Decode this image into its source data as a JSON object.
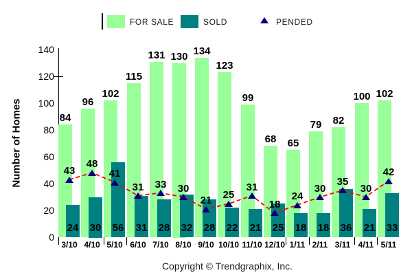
{
  "legend": {
    "items": [
      {
        "label": "FOR SALE",
        "swatch": "square",
        "color": "#99ff99"
      },
      {
        "label": "SOLD",
        "swatch": "square",
        "color": "#008080"
      },
      {
        "label": "PENDED",
        "swatch": "triangle",
        "color": "#000080"
      }
    ]
  },
  "footer": {
    "copyright": "Copyright © Trendgraphix, Inc."
  },
  "chart_data": {
    "type": "bar",
    "title": "",
    "categories": [
      "3/10",
      "4/10",
      "5/10",
      "6/10",
      "7/10",
      "8/10",
      "9/10",
      "10/10",
      "11/10",
      "12/10",
      "1/11",
      "2/11",
      "3/11",
      "4/11",
      "5/11"
    ],
    "series": [
      {
        "name": "FOR SALE",
        "type": "bar",
        "color": "#99ff99",
        "values": [
          84,
          96,
          102,
          115,
          131,
          130,
          134,
          123,
          99,
          68,
          65,
          79,
          82,
          100,
          102
        ]
      },
      {
        "name": "SOLD",
        "type": "bar",
        "color": "#008080",
        "values": [
          24,
          30,
          56,
          31,
          28,
          32,
          28,
          22,
          21,
          25,
          18,
          18,
          36,
          21,
          33
        ]
      },
      {
        "name": "PENDED",
        "type": "line",
        "marker": "triangle",
        "marker_color": "#000080",
        "line_color": "#ff0000",
        "line_dash": "dashed",
        "values": [
          43,
          48,
          41,
          31,
          33,
          30,
          21,
          25,
          31,
          18,
          24,
          30,
          35,
          30,
          42
        ]
      }
    ],
    "xlabel": "",
    "ylabel": "Number of Homes",
    "ylim": [
      0,
      140
    ],
    "yticks": [
      0,
      20,
      40,
      60,
      80,
      100,
      120,
      140
    ],
    "grid": false,
    "legend_position": "top",
    "value_labels": true
  }
}
